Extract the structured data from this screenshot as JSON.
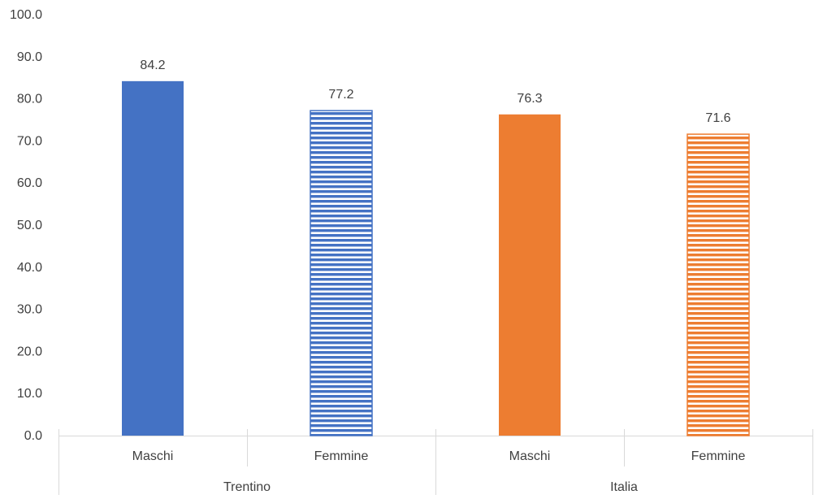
{
  "chart_data": {
    "type": "bar",
    "groups": [
      {
        "label": "Trentino",
        "categories": [
          "Maschi",
          "Femmine"
        ]
      },
      {
        "label": "Italia",
        "categories": [
          "Maschi",
          "Femmine"
        ]
      }
    ],
    "categories": [
      "Maschi",
      "Femmine",
      "Maschi",
      "Femmine"
    ],
    "values": [
      84.2,
      77.2,
      76.3,
      71.6
    ],
    "data_labels": [
      "84.2",
      "77.2",
      "76.3",
      "71.6"
    ],
    "bar_colors": [
      "#4472C4",
      "#4472C4",
      "#ED7D31",
      "#ED7D31"
    ],
    "bar_patterns": [
      "solid",
      "horizontal-stripes",
      "solid",
      "horizontal-stripes"
    ],
    "ylim": [
      0,
      100
    ],
    "yticks": [
      "0.0",
      "10.0",
      "20.0",
      "30.0",
      "40.0",
      "50.0",
      "60.0",
      "70.0",
      "80.0",
      "90.0",
      "100.0"
    ],
    "grid": false,
    "legend": "none",
    "title": "",
    "xlabel": "",
    "ylabel": ""
  }
}
